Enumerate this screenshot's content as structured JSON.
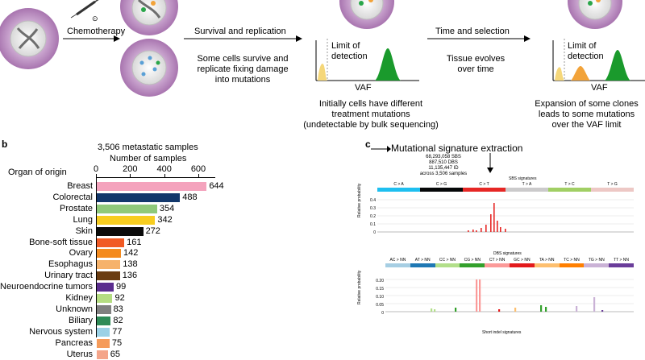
{
  "panel_a": {
    "chemo_label": "Chemotherapy",
    "timer_symbol": "⊙",
    "survival_label": "Survival and replication",
    "survive_text": "Some cells survive and\nreplicate fixing damage\ninto mutations",
    "limit_label_1": "Limit of\ndetection",
    "vaf_label_1": "VAF",
    "initial_text": "Initially cells have different\ntreatment mutations\n(undetectable by bulk sequencing)",
    "time_label": "Time and selection",
    "evolve_text": "Tissue evolves\nover time",
    "limit_label_2": "Limit of\ndetection",
    "vaf_label_2": "VAF",
    "expansion_text": "Expansion of some clones\nleads to some mutations\nover the VAF limit"
  },
  "panel_b": {
    "panel_letter": "b",
    "title": "3,506 metastatic samples",
    "axis_title": "Number of samples",
    "organ_header": "Organ of origin",
    "ticks": [
      "0",
      "200",
      "400",
      "600"
    ]
  },
  "panel_c": {
    "panel_letter": "c",
    "title": "Mutational signature extraction",
    "counts": "68,293,058 SBS\n887,510 DBS\n11,135,447 ID\nacross 3,506 samples",
    "sbs_title": "SBS signatures",
    "sbs_groups": [
      "C > A",
      "C > G",
      "C > T",
      "T > A",
      "T > C",
      "T > G"
    ],
    "sbs_colors": [
      "#1ebff0",
      "#050708",
      "#e62725",
      "#cbcacb",
      "#a1cf64",
      "#edc8c5"
    ],
    "sbs_ylabel": "Relative probability",
    "sbs_yticks": [
      "0.4",
      "0.3",
      "0.2",
      "0.1",
      "0"
    ],
    "dbs_title": "DBS signatures",
    "dbs_groups": [
      "AC > NN",
      "AT > NN",
      "CC > NN",
      "CG > NN",
      "CT > NN",
      "GC > NN",
      "TA > NN",
      "TC > NN",
      "TG > NN",
      "TT > NN"
    ],
    "dbs_colors": [
      "#a6cee3",
      "#1f78b4",
      "#b2df8a",
      "#33a02c",
      "#fb9a99",
      "#e31a1c",
      "#fdbf6f",
      "#ff7f00",
      "#cab2d6",
      "#6a3d9a"
    ],
    "dbs_ylabel": "Relative probability",
    "dbs_yticks": [
      "0.20",
      "0.15",
      "0.10",
      "0.05",
      "0"
    ],
    "id_title": "Short indel signatures"
  },
  "chart_data": {
    "type": "bar",
    "orientation": "horizontal",
    "title": "3,506 metastatic samples",
    "xlabel": "Number of samples",
    "ylabel": "Organ of origin",
    "xlim": [
      0,
      700
    ],
    "xticks": [
      0,
      200,
      400,
      600
    ],
    "categories": [
      "Breast",
      "Colorectal",
      "Prostate",
      "Lung",
      "Skin",
      "Bone-soft tissue",
      "Ovary",
      "Esophagus",
      "Urinary tract",
      "Neuroendocrine tumors",
      "Kidney",
      "Unknown",
      "Biliary",
      "Nervous system",
      "Pancreas",
      "Uterus"
    ],
    "values": [
      644,
      488,
      354,
      342,
      272,
      161,
      142,
      138,
      136,
      99,
      92,
      83,
      82,
      77,
      75,
      65
    ],
    "colors": [
      "#f4a3bd",
      "#12376b",
      "#8fc97a",
      "#f7cd1f",
      "#0b0b0b",
      "#f15a24",
      "#f48b1f",
      "#f6b26b",
      "#6b3d12",
      "#5b2d8e",
      "#b5dd82",
      "#808080",
      "#2e8b57",
      "#9bd1e6",
      "#f59b5a",
      "#f4a58a"
    ]
  }
}
